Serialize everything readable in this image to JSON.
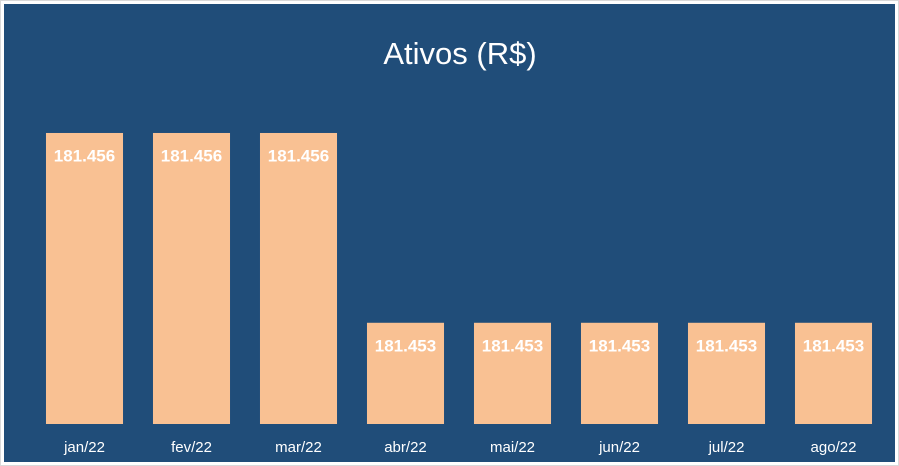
{
  "chart_data": {
    "type": "bar",
    "title": "Ativos (R$)",
    "categories": [
      "jan/22",
      "fev/22",
      "mar/22",
      "abr/22",
      "mai/22",
      "jun/22",
      "jul/22",
      "ago/22"
    ],
    "values": [
      181456,
      181456,
      181456,
      181453,
      181453,
      181453,
      181453,
      181453
    ],
    "value_labels": [
      "181.456",
      "181.456",
      "181.456",
      "181.453",
      "181.453",
      "181.453",
      "181.453",
      "181.453"
    ],
    "color": "#f9c193",
    "ylim": [
      181451.4,
      181456.3
    ]
  }
}
